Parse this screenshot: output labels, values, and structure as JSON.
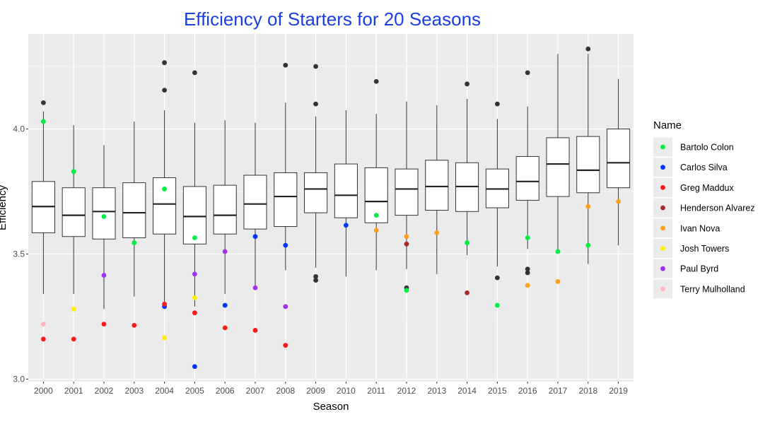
{
  "chart_data": {
    "type": "box",
    "title": "Efficiency of Starters for 20 Seasons",
    "xlabel": "Season",
    "ylabel": "Efficiency",
    "ylim": [
      2.99,
      4.38
    ],
    "yticks": [
      "3.0",
      "3.5",
      "4.0"
    ],
    "grid": true,
    "legend_title": "Name",
    "legend_position": "right",
    "categories": [
      "2000",
      "2001",
      "2002",
      "2003",
      "2004",
      "2005",
      "2006",
      "2007",
      "2008",
      "2009",
      "2010",
      "2011",
      "2012",
      "2013",
      "2014",
      "2015",
      "2016",
      "2017",
      "2018",
      "2019"
    ],
    "boxes": [
      {
        "min": 3.34,
        "q1": 3.585,
        "median": 3.69,
        "q3": 3.79,
        "max": 4.07
      },
      {
        "min": 3.34,
        "q1": 3.57,
        "median": 3.655,
        "q3": 3.765,
        "max": 4.015
      },
      {
        "min": 3.28,
        "q1": 3.56,
        "median": 3.67,
        "q3": 3.765,
        "max": 3.935
      },
      {
        "min": 3.33,
        "q1": 3.565,
        "median": 3.665,
        "q3": 3.785,
        "max": 4.03
      },
      {
        "min": 3.3,
        "q1": 3.58,
        "median": 3.7,
        "q3": 3.805,
        "max": 4.075
      },
      {
        "min": 3.29,
        "q1": 3.54,
        "median": 3.65,
        "q3": 3.77,
        "max": 4.025
      },
      {
        "min": 3.34,
        "q1": 3.58,
        "median": 3.655,
        "q3": 3.775,
        "max": 4.035
      },
      {
        "min": 3.37,
        "q1": 3.6,
        "median": 3.7,
        "q3": 3.815,
        "max": 4.025
      },
      {
        "min": 3.435,
        "q1": 3.61,
        "median": 3.73,
        "q3": 3.825,
        "max": 4.105
      },
      {
        "min": 3.445,
        "q1": 3.665,
        "median": 3.76,
        "q3": 3.825,
        "max": 4.05
      },
      {
        "min": 3.41,
        "q1": 3.645,
        "median": 3.735,
        "q3": 3.86,
        "max": 4.075
      },
      {
        "min": 3.435,
        "q1": 3.625,
        "median": 3.71,
        "q3": 3.845,
        "max": 4.06
      },
      {
        "min": 3.44,
        "q1": 3.655,
        "median": 3.76,
        "q3": 3.84,
        "max": 4.11
      },
      {
        "min": 3.42,
        "q1": 3.675,
        "median": 3.77,
        "q3": 3.875,
        "max": 4.095
      },
      {
        "min": 3.495,
        "q1": 3.67,
        "median": 3.77,
        "q3": 3.865,
        "max": 4.12
      },
      {
        "min": 3.45,
        "q1": 3.685,
        "median": 3.76,
        "q3": 3.84,
        "max": 4.04
      },
      {
        "min": 3.52,
        "q1": 3.715,
        "median": 3.79,
        "q3": 3.89,
        "max": 4.09
      },
      {
        "min": 3.51,
        "q1": 3.73,
        "median": 3.86,
        "q3": 3.965,
        "max": 4.3
      },
      {
        "min": 3.46,
        "q1": 3.745,
        "median": 3.835,
        "q3": 3.97,
        "max": 4.3
      },
      {
        "min": 3.535,
        "q1": 3.765,
        "median": 3.865,
        "q3": 4.0,
        "max": 4.2
      }
    ],
    "outliers": [
      {
        "x": "2000",
        "y": 4.105
      },
      {
        "x": "2004",
        "y": 4.265
      },
      {
        "x": "2004",
        "y": 4.155
      },
      {
        "x": "2005",
        "y": 4.225
      },
      {
        "x": "2008",
        "y": 4.255
      },
      {
        "x": "2009",
        "y": 4.25
      },
      {
        "x": "2009",
        "y": 4.1
      },
      {
        "x": "2009",
        "y": 3.41
      },
      {
        "x": "2009",
        "y": 3.395
      },
      {
        "x": "2011",
        "y": 4.19
      },
      {
        "x": "2012",
        "y": 3.365
      },
      {
        "x": "2014",
        "y": 4.18
      },
      {
        "x": "2015",
        "y": 4.1
      },
      {
        "x": "2015",
        "y": 3.405
      },
      {
        "x": "2016",
        "y": 4.225
      },
      {
        "x": "2016",
        "y": 3.44
      },
      {
        "x": "2016",
        "y": 3.425
      },
      {
        "x": "2018",
        "y": 4.32
      }
    ],
    "series": [
      {
        "name": "Bartolo Colon",
        "color": "#00ee44",
        "points": [
          {
            "x": "2000",
            "y": 4.03
          },
          {
            "x": "2001",
            "y": 3.83
          },
          {
            "x": "2002",
            "y": 3.65
          },
          {
            "x": "2003",
            "y": 3.545
          },
          {
            "x": "2004",
            "y": 3.76
          },
          {
            "x": "2005",
            "y": 3.565
          },
          {
            "x": "2011",
            "y": 3.655
          },
          {
            "x": "2012",
            "y": 3.355
          },
          {
            "x": "2014",
            "y": 3.545
          },
          {
            "x": "2015",
            "y": 3.295
          },
          {
            "x": "2016",
            "y": 3.565
          },
          {
            "x": "2017",
            "y": 3.51
          },
          {
            "x": "2018",
            "y": 3.535
          }
        ]
      },
      {
        "name": "Carlos Silva",
        "color": "#0033ff",
        "points": [
          {
            "x": "2004",
            "y": 3.29
          },
          {
            "x": "2005",
            "y": 3.05
          },
          {
            "x": "2006",
            "y": 3.295
          },
          {
            "x": "2007",
            "y": 3.57
          },
          {
            "x": "2008",
            "y": 3.535
          },
          {
            "x": "2010",
            "y": 3.615
          }
        ]
      },
      {
        "name": "Greg Maddux",
        "color": "#ff1a1a",
        "points": [
          {
            "x": "2000",
            "y": 3.16
          },
          {
            "x": "2001",
            "y": 3.16
          },
          {
            "x": "2002",
            "y": 3.22
          },
          {
            "x": "2003",
            "y": 3.215
          },
          {
            "x": "2004",
            "y": 3.3
          },
          {
            "x": "2005",
            "y": 3.265
          },
          {
            "x": "2006",
            "y": 3.205
          },
          {
            "x": "2007",
            "y": 3.195
          },
          {
            "x": "2008",
            "y": 3.135
          }
        ]
      },
      {
        "name": "Henderson Alvarez",
        "color": "#a52a2a",
        "points": [
          {
            "x": "2012",
            "y": 3.54
          },
          {
            "x": "2014",
            "y": 3.345
          }
        ]
      },
      {
        "name": "Ivan Nova",
        "color": "#ff9f1a",
        "points": [
          {
            "x": "2011",
            "y": 3.595
          },
          {
            "x": "2012",
            "y": 3.57
          },
          {
            "x": "2013",
            "y": 3.585
          },
          {
            "x": "2016",
            "y": 3.375
          },
          {
            "x": "2017",
            "y": 3.39
          },
          {
            "x": "2018",
            "y": 3.69
          },
          {
            "x": "2019",
            "y": 3.71
          }
        ]
      },
      {
        "name": "Josh Towers",
        "color": "#ffee00",
        "points": [
          {
            "x": "2001",
            "y": 3.28
          },
          {
            "x": "2004",
            "y": 3.165
          },
          {
            "x": "2005",
            "y": 3.325
          }
        ]
      },
      {
        "name": "Paul Byrd",
        "color": "#a033ee",
        "points": [
          {
            "x": "2002",
            "y": 3.415
          },
          {
            "x": "2005",
            "y": 3.42
          },
          {
            "x": "2006",
            "y": 3.51
          },
          {
            "x": "2007",
            "y": 3.365
          },
          {
            "x": "2008",
            "y": 3.29
          }
        ]
      },
      {
        "name": "Terry Mulholland",
        "color": "#ffb6c1",
        "points": [
          {
            "x": "2000",
            "y": 3.22
          }
        ]
      }
    ]
  }
}
